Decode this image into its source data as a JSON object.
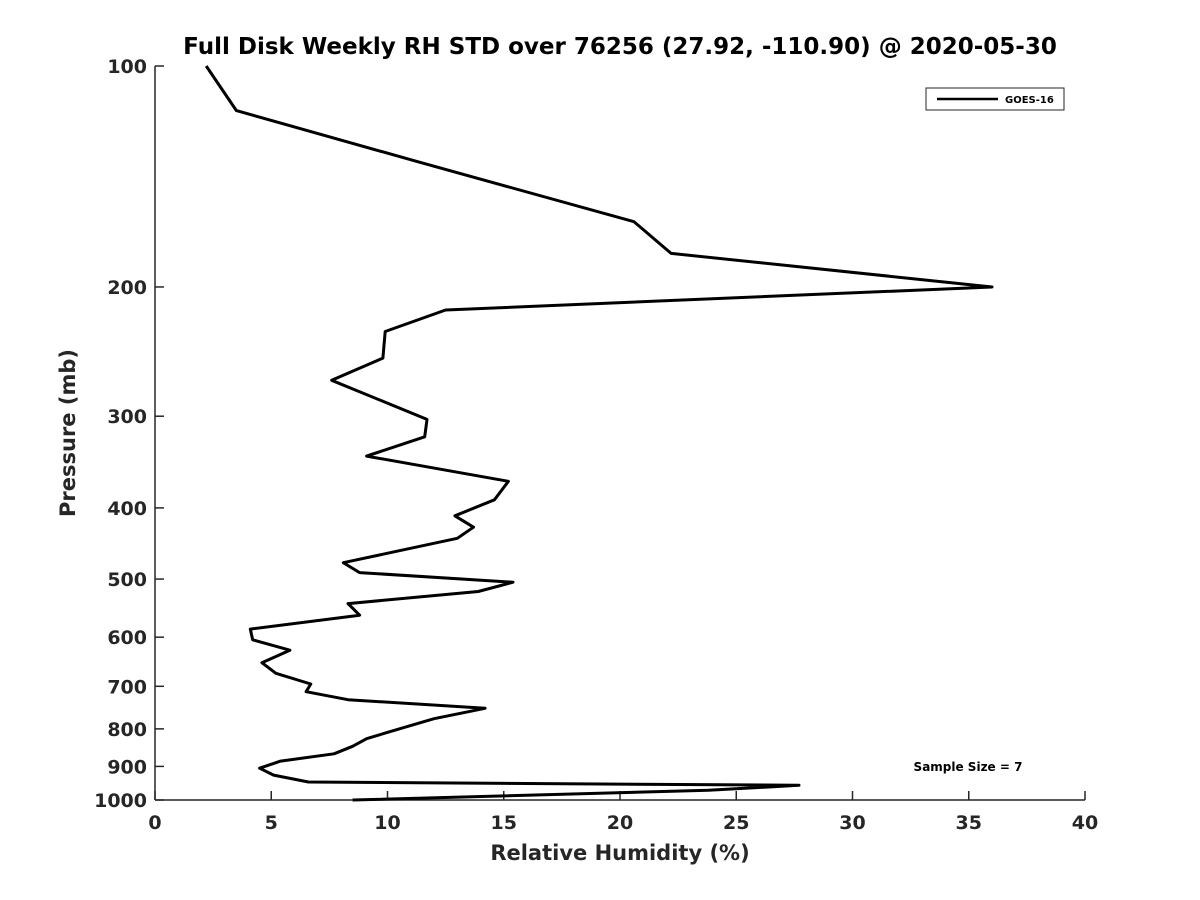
{
  "chart_data": {
    "type": "line",
    "title": "Full Disk Weekly RH STD over 76256 (27.92, -110.90) @ 2020-05-30",
    "xlabel": "Relative Humidity (%)",
    "ylabel": "Pressure (mb)",
    "xlim": [
      0,
      40
    ],
    "ylim": [
      100,
      1000
    ],
    "yscale": "log",
    "y_reversed": true,
    "xticks": [
      0,
      5,
      10,
      15,
      20,
      25,
      30,
      35,
      40
    ],
    "yticks": [
      100,
      200,
      300,
      400,
      500,
      600,
      700,
      800,
      900,
      1000
    ],
    "legend": {
      "position": "top-right",
      "entries": [
        "GOES-16"
      ]
    },
    "annotation": "Sample Size = 7",
    "grid": false,
    "series": [
      {
        "name": "GOES-16",
        "color": "#000000",
        "points": [
          [
            2.2,
            100
          ],
          [
            3.5,
            115
          ],
          [
            11.3,
            135
          ],
          [
            20.6,
            163
          ],
          [
            22.2,
            180
          ],
          [
            36.0,
            200
          ],
          [
            12.5,
            215
          ],
          [
            9.9,
            230
          ],
          [
            9.8,
            250
          ],
          [
            7.6,
            268
          ],
          [
            11.7,
            303
          ],
          [
            11.6,
            320
          ],
          [
            9.1,
            340
          ],
          [
            15.2,
            368
          ],
          [
            14.6,
            390
          ],
          [
            12.9,
            410
          ],
          [
            13.7,
            425
          ],
          [
            13.0,
            440
          ],
          [
            8.1,
            475
          ],
          [
            8.8,
            490
          ],
          [
            15.4,
            505
          ],
          [
            13.9,
            520
          ],
          [
            8.3,
            540
          ],
          [
            8.8,
            560
          ],
          [
            4.1,
            585
          ],
          [
            4.2,
            605
          ],
          [
            5.8,
            625
          ],
          [
            4.6,
            650
          ],
          [
            5.2,
            672
          ],
          [
            6.7,
            695
          ],
          [
            6.5,
            712
          ],
          [
            8.3,
            730
          ],
          [
            14.2,
            750
          ],
          [
            12.0,
            775
          ],
          [
            10.5,
            800
          ],
          [
            9.1,
            825
          ],
          [
            8.5,
            845
          ],
          [
            7.7,
            865
          ],
          [
            5.4,
            885
          ],
          [
            4.5,
            905
          ],
          [
            5.1,
            925
          ],
          [
            6.6,
            945
          ],
          [
            27.7,
            955
          ],
          [
            23.8,
            970
          ],
          [
            8.5,
            1000
          ]
        ]
      }
    ]
  }
}
